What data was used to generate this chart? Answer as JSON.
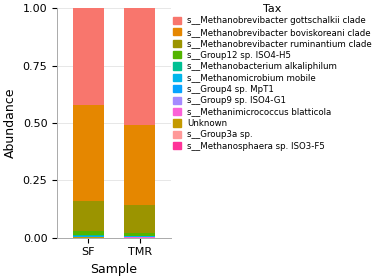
{
  "categories": [
    "SF",
    "TMR"
  ],
  "legend_title": "Tax",
  "xlabel": "Sample",
  "ylabel": "Abundance",
  "ylim": [
    0,
    1.0
  ],
  "yticks": [
    0.0,
    0.25,
    0.5,
    0.75,
    1.0
  ],
  "taxa": [
    "s__Methanobrevibacter gottschalkii clade",
    "s__Methanobrevibacter boviskoreani clade",
    "s__Methanobrevibacter ruminantium clade",
    "s__Group12 sp. ISO4-H5",
    "s__Methanobacterium alkaliphilum",
    "s__Methanomicrobium mobile",
    "s__Group4 sp. MpT1",
    "s__Group9 sp. ISO4-G1",
    "s__Methanimicrococcus blatticola",
    "Unknown",
    "s__Group3a sp.",
    "s__Methanosphaera sp. ISO3-F5"
  ],
  "colors": [
    "#F8766D",
    "#E58700",
    "#9B9400",
    "#53B400",
    "#00C094",
    "#00B6EB",
    "#06A4FF",
    "#A58AFF",
    "#FB61D7",
    "#C49A00",
    "#FF9999",
    "#FF3399"
  ],
  "SF_values": [
    0.42,
    0.42,
    0.13,
    0.02,
    0.003,
    0.002,
    0.002,
    0.001,
    0.001,
    0.001,
    0.0,
    0.0
  ],
  "TMR_values": [
    0.51,
    0.35,
    0.12,
    0.012,
    0.003,
    0.002,
    0.001,
    0.001,
    0.001,
    0.0,
    0.0,
    0.0
  ],
  "bar_width": 0.6,
  "fig_bg": "#FFFFFF",
  "axes_bg": "#FFFFFF",
  "label_fontsize": 9,
  "tick_fontsize": 8,
  "legend_fontsize": 6.2,
  "legend_title_fontsize": 8
}
